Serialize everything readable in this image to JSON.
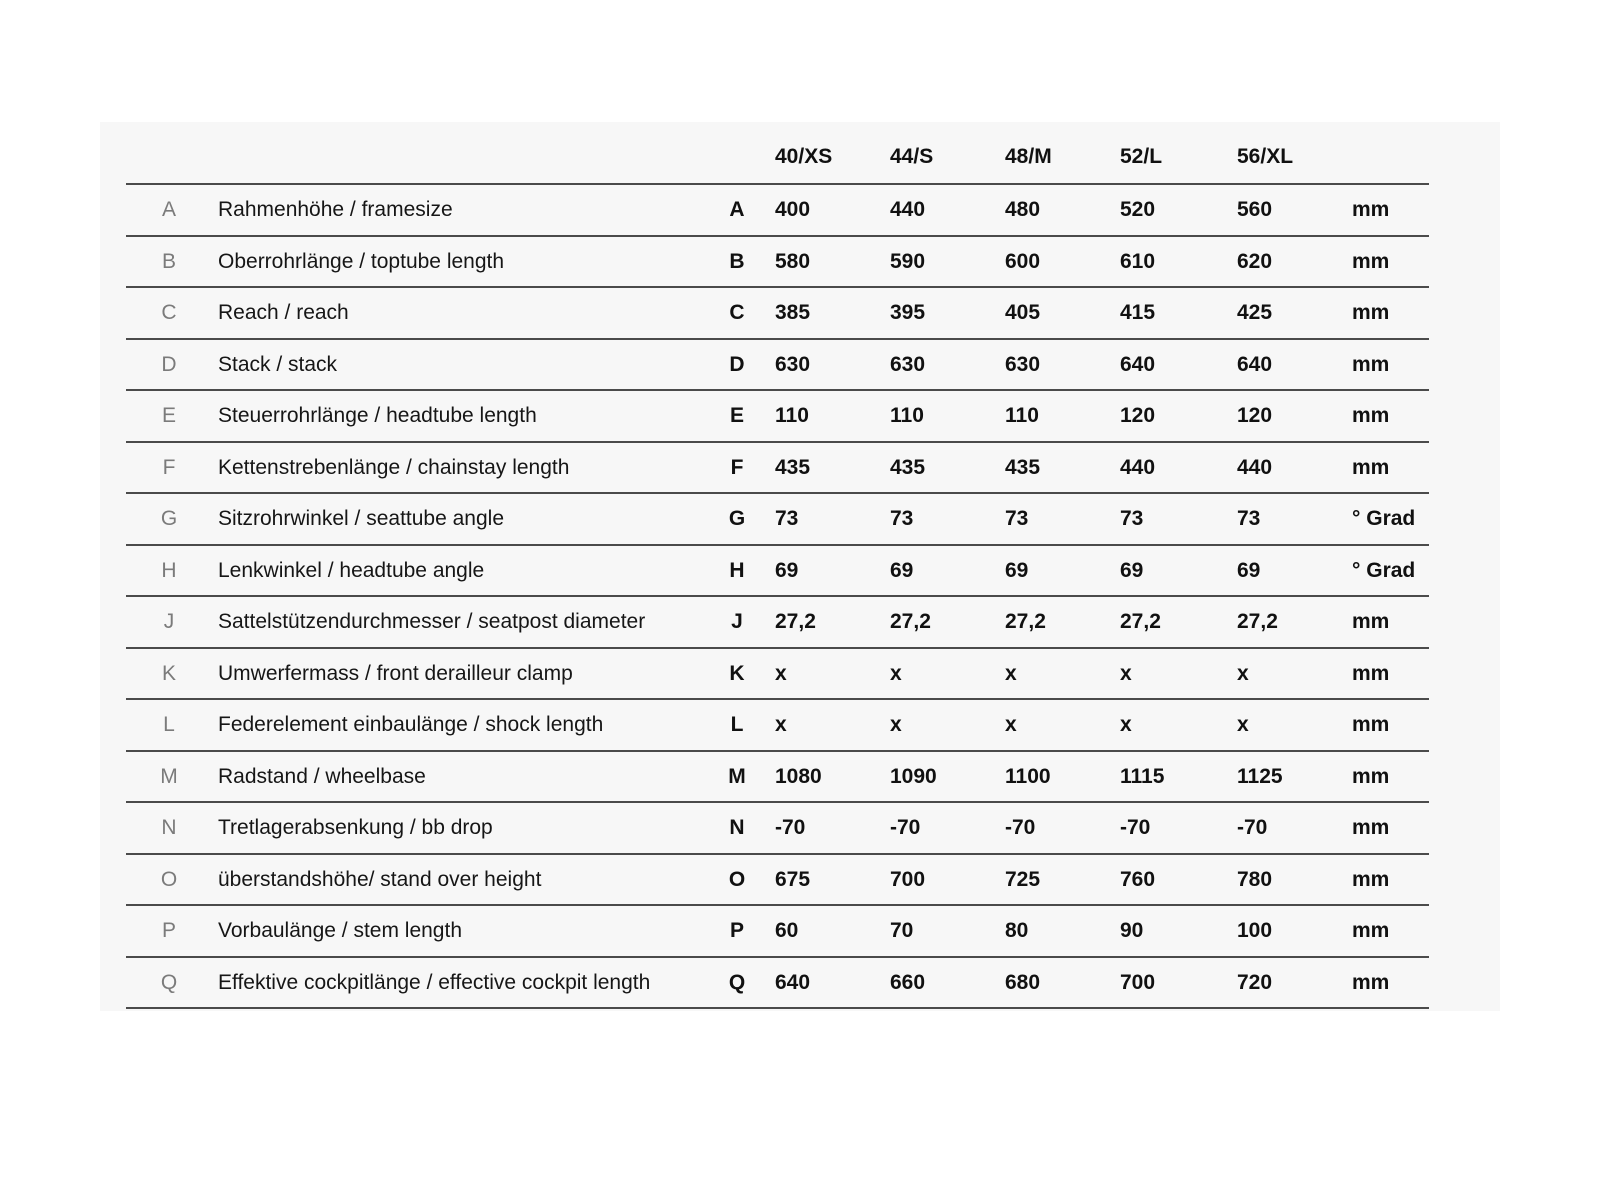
{
  "chart_data": {
    "type": "table",
    "title": "",
    "columns": [
      "40/XS",
      "44/S",
      "48/M",
      "52/L",
      "56/XL"
    ],
    "rows": [
      {
        "letter": "A",
        "label": "Rahmenhöhe / framesize",
        "values": [
          "400",
          "440",
          "480",
          "520",
          "560"
        ],
        "unit": "mm"
      },
      {
        "letter": "B",
        "label": "Oberrohrlänge / toptube length",
        "values": [
          "580",
          "590",
          "600",
          "610",
          "620"
        ],
        "unit": "mm"
      },
      {
        "letter": "C",
        "label": "Reach / reach",
        "values": [
          "385",
          "395",
          "405",
          "415",
          "425"
        ],
        "unit": "mm"
      },
      {
        "letter": "D",
        "label": "Stack / stack",
        "values": [
          "630",
          "630",
          "630",
          "640",
          "640"
        ],
        "unit": "mm"
      },
      {
        "letter": "E",
        "label": "Steuerrohrlänge / headtube length",
        "values": [
          "110",
          "110",
          "110",
          "120",
          "120"
        ],
        "unit": "mm"
      },
      {
        "letter": "F",
        "label": "Kettenstrebenlänge / chainstay length",
        "values": [
          "435",
          "435",
          "435",
          "440",
          "440"
        ],
        "unit": "mm"
      },
      {
        "letter": "G",
        "label": "Sitzrohrwinkel / seattube angle",
        "values": [
          "73",
          "73",
          "73",
          "73",
          "73"
        ],
        "unit": "° Grad"
      },
      {
        "letter": "H",
        "label": "Lenkwinkel / headtube angle",
        "values": [
          "69",
          "69",
          "69",
          "69",
          "69"
        ],
        "unit": "° Grad"
      },
      {
        "letter": "J",
        "label": "Sattelstützendurchmesser / seatpost diameter",
        "values": [
          "27,2",
          "27,2",
          "27,2",
          "27,2",
          "27,2"
        ],
        "unit": "mm"
      },
      {
        "letter": "K",
        "label": "Umwerfermass / front derailleur clamp",
        "values": [
          "x",
          "x",
          "x",
          "x",
          "x"
        ],
        "unit": "mm"
      },
      {
        "letter": "L",
        "label": "Federelement einbaulänge / shock length",
        "values": [
          "x",
          "x",
          "x",
          "x",
          "x"
        ],
        "unit": "mm"
      },
      {
        "letter": "M",
        "label": "Radstand / wheelbase",
        "values": [
          "1080",
          "1090",
          "1100",
          "1115",
          "1125"
        ],
        "unit": "mm"
      },
      {
        "letter": "N",
        "label": "Tretlagerabsenkung / bb drop",
        "values": [
          "-70",
          "-70",
          "-70",
          "-70",
          "-70"
        ],
        "unit": "mm"
      },
      {
        "letter": "O",
        "label": "überstandshöhe/ stand over height",
        "values": [
          "675",
          "700",
          "725",
          "760",
          "780"
        ],
        "unit": "mm"
      },
      {
        "letter": "P",
        "label": "Vorbaulänge / stem length",
        "values": [
          "60",
          "70",
          "80",
          "90",
          "100"
        ],
        "unit": "mm"
      },
      {
        "letter": "Q",
        "label": "Effektive cockpitlänge / effective cockpit length",
        "values": [
          "640",
          "660",
          "680",
          "700",
          "720"
        ],
        "unit": "mm"
      }
    ]
  },
  "colors": {
    "page_bg": "#ffffff",
    "panel_bg": "#f7f7f7",
    "line": "#4b4b4b",
    "text": "#111111",
    "muted_letter": "#7b7b7b"
  }
}
